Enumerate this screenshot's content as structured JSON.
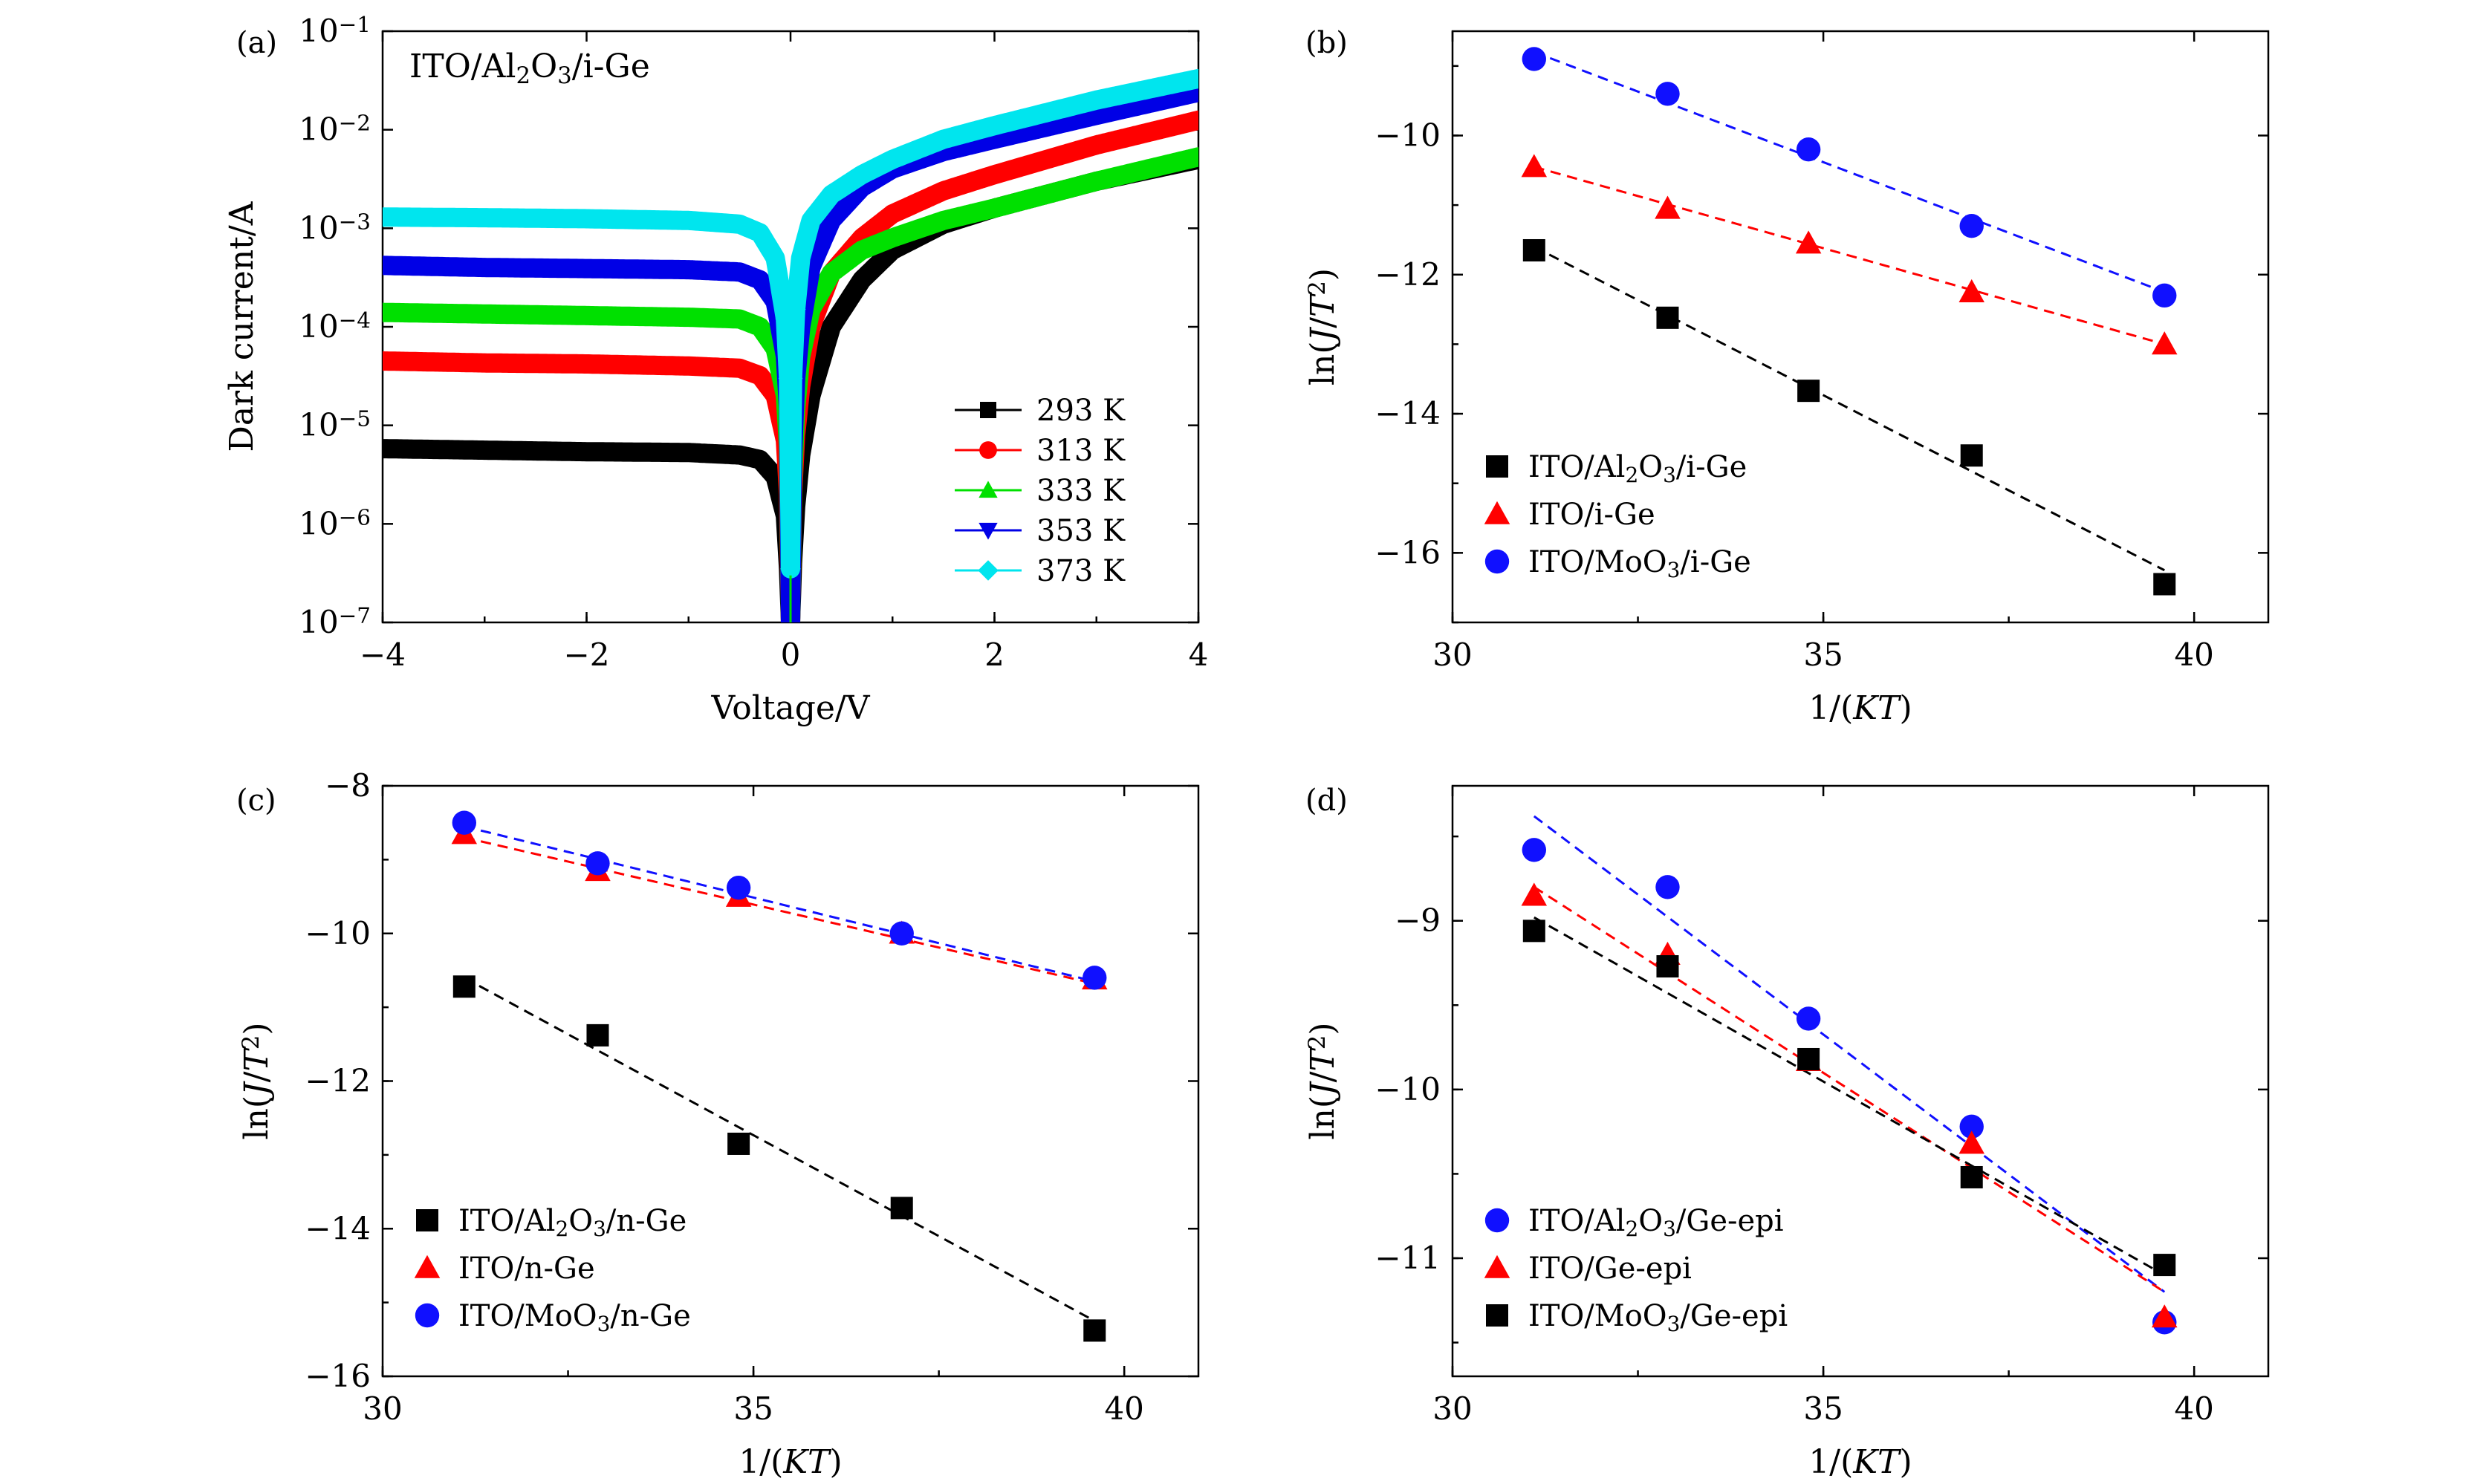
{
  "colors": {
    "black": "#000000",
    "red": "#ff0000",
    "green": "#00e000",
    "blue": "#0000e6",
    "cyan": "#00e5ee",
    "point_blue": "#1010ff"
  },
  "chart_data": [
    {
      "panel": "(a)",
      "type": "line",
      "annotation": "ITO/Al₂O₃/i-Ge",
      "xlabel": "Voltage/V",
      "ylabel": "Dark current/A",
      "xlim": [
        -4,
        4
      ],
      "ylim": [
        1e-07,
        0.1
      ],
      "yscale": "log",
      "xticks": [
        -4,
        -2,
        0,
        2,
        4
      ],
      "xtick_labels": [
        "−4",
        "−2",
        "0",
        "2",
        "4"
      ],
      "yticks": [
        1e-07,
        1e-06,
        1e-05,
        0.0001,
        0.001,
        0.01,
        0.1
      ],
      "ytick_labels": [
        {
          "base": "10",
          "exp": "−7"
        },
        {
          "base": "10",
          "exp": "−6"
        },
        {
          "base": "10",
          "exp": "−5"
        },
        {
          "base": "10",
          "exp": "−4"
        },
        {
          "base": "10",
          "exp": "−3"
        },
        {
          "base": "10",
          "exp": "−2"
        },
        {
          "base": "10",
          "exp": "−1"
        }
      ],
      "legend_position": "bottom-right",
      "grid": false,
      "series": [
        {
          "name": "293 K",
          "marker": "square",
          "color": "#000000",
          "points": [
            [
              -4,
              5.8e-06
            ],
            [
              -3,
              5.6e-06
            ],
            [
              -2,
              5.4e-06
            ],
            [
              -1,
              5.3e-06
            ],
            [
              -0.5,
              5e-06
            ],
            [
              -0.3,
              4.5e-06
            ],
            [
              -0.15,
              3e-06
            ],
            [
              -0.05,
              1.2e-06
            ],
            [
              -0.02,
              3.5e-07
            ],
            [
              0,
              1e-07
            ],
            [
              0.02,
              4e-07
            ],
            [
              0.05,
              1.5e-06
            ],
            [
              0.1,
              5e-06
            ],
            [
              0.2,
              2e-05
            ],
            [
              0.4,
              0.0001
            ],
            [
              0.7,
              0.0003
            ],
            [
              1,
              0.0006
            ],
            [
              1.5,
              0.0011
            ],
            [
              2,
              0.0016
            ],
            [
              3,
              0.003
            ],
            [
              4,
              0.005
            ]
          ]
        },
        {
          "name": "313 K",
          "marker": "circle",
          "color": "#ff0000",
          "points": [
            [
              -4,
              4.5e-05
            ],
            [
              -3,
              4.3e-05
            ],
            [
              -2,
              4.2e-05
            ],
            [
              -1,
              4e-05
            ],
            [
              -0.5,
              3.8e-05
            ],
            [
              -0.3,
              3.2e-05
            ],
            [
              -0.15,
              2e-05
            ],
            [
              -0.05,
              7e-06
            ],
            [
              -0.02,
              2e-06
            ],
            [
              0,
              1e-07
            ],
            [
              0.02,
              2e-06
            ],
            [
              0.05,
              8e-06
            ],
            [
              0.1,
              2.5e-05
            ],
            [
              0.2,
              0.0001
            ],
            [
              0.4,
              0.00035
            ],
            [
              0.7,
              0.0008
            ],
            [
              1,
              0.0014
            ],
            [
              1.5,
              0.0024
            ],
            [
              2,
              0.0035
            ],
            [
              3,
              0.007
            ],
            [
              4,
              0.0125
            ]
          ]
        },
        {
          "name": "333 K",
          "marker": "triangle-up",
          "color": "#00e000",
          "points": [
            [
              -4,
              0.00014
            ],
            [
              -3,
              0.000135
            ],
            [
              -2,
              0.00013
            ],
            [
              -1,
              0.000125
            ],
            [
              -0.5,
              0.00012
            ],
            [
              -0.3,
              0.0001
            ],
            [
              -0.15,
              6e-05
            ],
            [
              -0.05,
              2e-05
            ],
            [
              -0.02,
              6e-06
            ],
            [
              0,
              1e-07
            ],
            [
              0.02,
              2.8e-06
            ],
            [
              0.05,
              1.5e-05
            ],
            [
              0.1,
              5e-05
            ],
            [
              0.2,
              0.00015
            ],
            [
              0.4,
              0.00035
            ],
            [
              0.7,
              0.0006
            ],
            [
              1,
              0.0008
            ],
            [
              1.5,
              0.0012
            ],
            [
              2,
              0.0016
            ],
            [
              3,
              0.003
            ],
            [
              4,
              0.0053
            ]
          ]
        },
        {
          "name": "353 K",
          "marker": "triangle-down",
          "color": "#0000e6",
          "points": [
            [
              -4,
              0.00042
            ],
            [
              -3,
              0.0004
            ],
            [
              -2,
              0.00039
            ],
            [
              -1,
              0.00038
            ],
            [
              -0.5,
              0.00036
            ],
            [
              -0.3,
              0.0003
            ],
            [
              -0.15,
              0.00018
            ],
            [
              -0.05,
              5e-05
            ],
            [
              -0.02,
              1.5e-05
            ],
            [
              0,
              1e-07
            ],
            [
              0.02,
              5e-06
            ],
            [
              0.05,
              3e-05
            ],
            [
              0.1,
              0.0001
            ],
            [
              0.2,
              0.0004
            ],
            [
              0.4,
              0.0012
            ],
            [
              0.7,
              0.0026
            ],
            [
              1,
              0.004
            ],
            [
              1.5,
              0.006
            ],
            [
              2,
              0.008
            ],
            [
              3,
              0.014
            ],
            [
              4,
              0.024
            ]
          ]
        },
        {
          "name": "373 K",
          "marker": "diamond",
          "color": "#00e5ee",
          "points": [
            [
              -4,
              0.0013
            ],
            [
              -3,
              0.00128
            ],
            [
              -2,
              0.00125
            ],
            [
              -1,
              0.0012
            ],
            [
              -0.5,
              0.0011
            ],
            [
              -0.3,
              0.0009
            ],
            [
              -0.15,
              0.0005
            ],
            [
              -0.05,
              0.00012
            ],
            [
              -0.02,
              3e-05
            ],
            [
              0,
              3.5e-07
            ],
            [
              0.02,
              3e-05
            ],
            [
              0.05,
              0.00015
            ],
            [
              0.1,
              0.0005
            ],
            [
              0.2,
              0.0012
            ],
            [
              0.4,
              0.0022
            ],
            [
              0.7,
              0.0035
            ],
            [
              1,
              0.005
            ],
            [
              1.5,
              0.008
            ],
            [
              2,
              0.011
            ],
            [
              3,
              0.02
            ],
            [
              4,
              0.033
            ]
          ]
        }
      ]
    },
    {
      "panel": "(b)",
      "type": "scatter",
      "xlabel": "1/(KT)",
      "ylabel": "ln(J/T²)",
      "xlim": [
        30,
        41
      ],
      "ylim": [
        -17,
        -8.5
      ],
      "xticks": [
        30,
        35,
        40
      ],
      "xtick_labels": [
        "30",
        "35",
        "40"
      ],
      "yticks": [
        -16,
        -14,
        -12,
        -10
      ],
      "ytick_labels": [
        "−16",
        "−14",
        "−12",
        "−10"
      ],
      "legend_position": "bottom-left",
      "grid": false,
      "fit": "linear dashed",
      "series": [
        {
          "name": "ITO/Al₂O₃/i-Ge",
          "marker": "square",
          "color": "#000000",
          "x": [
            31.1,
            32.9,
            34.8,
            37.0,
            39.6
          ],
          "y": [
            -11.65,
            -12.62,
            -13.67,
            -14.6,
            -16.45
          ],
          "fit_line": [
            [
              31.1,
              -11.6
            ],
            [
              39.6,
              -16.25
            ]
          ]
        },
        {
          "name": "ITO/i-Ge",
          "marker": "triangle-up",
          "color": "#ff0000",
          "x": [
            31.1,
            32.9,
            34.8,
            37.0,
            39.6
          ],
          "y": [
            -10.45,
            -11.05,
            -11.55,
            -12.25,
            -13.0
          ],
          "fit_line": [
            [
              31.1,
              -10.45
            ],
            [
              39.6,
              -13.0
            ]
          ]
        },
        {
          "name": "ITO/MoO₃/i-Ge",
          "marker": "circle",
          "color": "#1010ff",
          "x": [
            31.1,
            32.9,
            34.8,
            37.0,
            39.6
          ],
          "y": [
            -8.9,
            -9.4,
            -10.2,
            -11.3,
            -12.3
          ],
          "fit_line": [
            [
              31.1,
              -8.8
            ],
            [
              39.6,
              -12.25
            ]
          ]
        }
      ]
    },
    {
      "panel": "(c)",
      "type": "scatter",
      "xlabel": "1/(KT)",
      "ylabel": "ln(J/T²)",
      "xlim": [
        30,
        41
      ],
      "ylim": [
        -16,
        -8
      ],
      "xticks": [
        30,
        35,
        40
      ],
      "xtick_labels": [
        "30",
        "35",
        "40"
      ],
      "yticks": [
        -16,
        -14,
        -12,
        -10,
        -8
      ],
      "ytick_labels": [
        "−16",
        "−14",
        "−12",
        "−10",
        "−8"
      ],
      "legend_position": "bottom-left",
      "grid": false,
      "fit": "linear dashed",
      "series": [
        {
          "name": "ITO/Al₂O₃/n-Ge",
          "marker": "square",
          "color": "#000000",
          "x": [
            31.1,
            32.9,
            34.8,
            37.0,
            39.6
          ],
          "y": [
            -10.72,
            -11.38,
            -12.85,
            -13.72,
            -15.38
          ],
          "fit_line": [
            [
              31.1,
              -10.6
            ],
            [
              39.6,
              -15.25
            ]
          ]
        },
        {
          "name": "ITO/n-Ge",
          "marker": "triangle-up",
          "color": "#ff0000",
          "x": [
            31.1,
            32.9,
            34.8,
            37.0,
            39.6
          ],
          "y": [
            -8.65,
            -9.15,
            -9.5,
            -10.0,
            -10.62
          ],
          "fit_line": [
            [
              31.1,
              -8.7
            ],
            [
              39.6,
              -10.68
            ]
          ]
        },
        {
          "name": "ITO/MoO₃/n-Ge",
          "marker": "circle",
          "color": "#1010ff",
          "x": [
            31.1,
            32.9,
            34.8,
            37.0,
            39.6
          ],
          "y": [
            -8.5,
            -9.05,
            -9.38,
            -10.0,
            -10.6
          ],
          "fit_line": [
            [
              31.1,
              -8.55
            ],
            [
              39.6,
              -10.65
            ]
          ]
        }
      ]
    },
    {
      "panel": "(d)",
      "type": "scatter",
      "xlabel": "1/(KT)",
      "ylabel": "ln(J/T²)",
      "xlim": [
        30,
        41
      ],
      "ylim": [
        -11.7,
        -8.2
      ],
      "xticks": [
        30,
        35,
        40
      ],
      "xtick_labels": [
        "30",
        "35",
        "40"
      ],
      "yticks": [
        -11,
        -10,
        -9
      ],
      "ytick_labels": [
        "−11",
        "−10",
        "−9"
      ],
      "legend_position": "bottom-left",
      "grid": false,
      "fit": "linear dashed",
      "series": [
        {
          "name": "ITO/Al₂O₃/Ge-epi",
          "marker": "circle",
          "color": "#1010ff",
          "x": [
            31.1,
            32.9,
            34.8,
            37.0,
            39.6
          ],
          "y": [
            -8.58,
            -8.8,
            -9.58,
            -10.22,
            -11.38
          ],
          "fit_line": [
            [
              31.1,
              -8.38
            ],
            [
              39.6,
              -11.2
            ]
          ]
        },
        {
          "name": "ITO/Ge-epi",
          "marker": "triangle-up",
          "color": "#ff0000",
          "x": [
            31.1,
            32.9,
            34.8,
            37.0,
            39.6
          ],
          "y": [
            -8.85,
            -9.2,
            -9.83,
            -10.32,
            -11.35
          ],
          "fit_line": [
            [
              31.1,
              -8.8
            ],
            [
              39.6,
              -11.2
            ]
          ]
        },
        {
          "name": "ITO/MoO₃/Ge-epi",
          "marker": "square",
          "color": "#000000",
          "x": [
            31.1,
            32.9,
            34.8,
            37.0,
            39.6
          ],
          "y": [
            -9.06,
            -9.27,
            -9.82,
            -10.52,
            -11.04
          ],
          "fit_line": [
            [
              31.1,
              -8.98
            ],
            [
              39.6,
              -11.1
            ]
          ]
        }
      ]
    }
  ]
}
